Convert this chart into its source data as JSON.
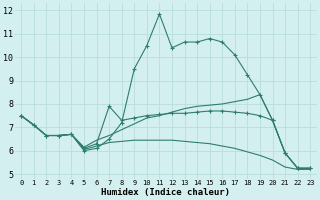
{
  "xlabel": "Humidex (Indice chaleur)",
  "xlim": [
    -0.5,
    23.5
  ],
  "ylim": [
    4.8,
    12.3
  ],
  "yticks": [
    5,
    6,
    7,
    8,
    9,
    10,
    11,
    12
  ],
  "xticks": [
    0,
    1,
    2,
    3,
    4,
    5,
    6,
    7,
    8,
    9,
    10,
    11,
    12,
    13,
    14,
    15,
    16,
    17,
    18,
    19,
    20,
    21,
    22,
    23
  ],
  "bg_color": "#d4efef",
  "line_color": "#2e7d6e",
  "grid_color": "#b8dede",
  "lines": [
    {
      "x": [
        0,
        1,
        2,
        3,
        4,
        5,
        6,
        7,
        8,
        9,
        10,
        11,
        12,
        13,
        14,
        15,
        16,
        17,
        18,
        19,
        20,
        21,
        22,
        23
      ],
      "y": [
        7.5,
        7.1,
        6.65,
        6.65,
        6.7,
        6.0,
        6.1,
        6.5,
        7.2,
        9.5,
        10.5,
        11.85,
        10.4,
        10.65,
        10.65,
        10.8,
        10.65,
        10.1,
        9.25,
        8.4,
        7.3,
        5.9,
        5.25,
        5.25
      ],
      "marker": true
    },
    {
      "x": [
        0,
        1,
        2,
        3,
        4,
        5,
        6,
        7,
        8,
        9,
        10,
        11,
        12,
        13,
        14,
        15,
        16,
        17,
        18,
        19,
        20,
        21,
        22,
        23
      ],
      "y": [
        7.5,
        7.1,
        6.65,
        6.65,
        6.7,
        6.1,
        6.3,
        7.9,
        7.3,
        7.4,
        7.5,
        7.55,
        7.6,
        7.6,
        7.65,
        7.7,
        7.7,
        7.65,
        7.6,
        7.5,
        7.3,
        5.9,
        5.25,
        5.25
      ],
      "marker": true
    },
    {
      "x": [
        0,
        1,
        2,
        3,
        4,
        5,
        6,
        7,
        8,
        9,
        10,
        11,
        12,
        13,
        14,
        15,
        16,
        17,
        18,
        19,
        20,
        21,
        22,
        23
      ],
      "y": [
        7.5,
        7.1,
        6.65,
        6.65,
        6.7,
        6.15,
        6.45,
        6.65,
        6.9,
        7.15,
        7.4,
        7.5,
        7.65,
        7.8,
        7.9,
        7.95,
        8.0,
        8.1,
        8.2,
        8.4,
        7.3,
        5.9,
        5.25,
        5.25
      ],
      "marker": false
    },
    {
      "x": [
        0,
        1,
        2,
        3,
        4,
        5,
        6,
        7,
        8,
        9,
        10,
        11,
        12,
        13,
        14,
        15,
        16,
        17,
        18,
        19,
        20,
        21,
        22,
        23
      ],
      "y": [
        7.5,
        7.1,
        6.65,
        6.65,
        6.7,
        6.05,
        6.2,
        6.35,
        6.4,
        6.45,
        6.45,
        6.45,
        6.45,
        6.4,
        6.35,
        6.3,
        6.2,
        6.1,
        5.95,
        5.8,
        5.6,
        5.3,
        5.2,
        5.2
      ],
      "marker": false
    }
  ]
}
